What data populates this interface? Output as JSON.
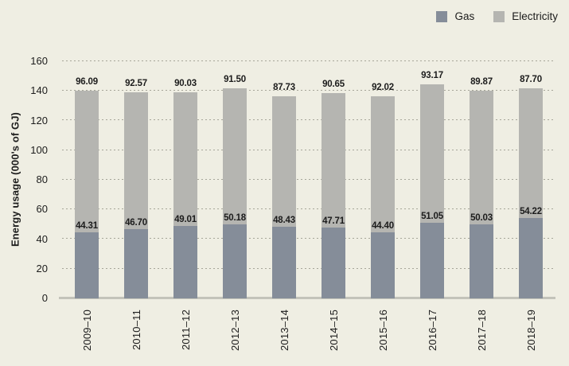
{
  "legend": {
    "items": [
      {
        "label": "Gas",
        "color": "#858d99"
      },
      {
        "label": "Electricity",
        "color": "#b5b5b1"
      }
    ]
  },
  "y_axis": {
    "title": "Energy usage (000's of GJ)",
    "ticks": [
      0,
      20,
      40,
      60,
      80,
      100,
      120,
      140,
      160
    ]
  },
  "chart_data": {
    "type": "bar",
    "stacked": true,
    "title": "",
    "xlabel": "",
    "ylabel": "Energy usage (000's of GJ)",
    "ylim": [
      0,
      160
    ],
    "yticks": [
      0,
      20,
      40,
      60,
      80,
      100,
      120,
      140,
      160
    ],
    "grid": "horizontal-dotted",
    "legend_position": "top-right",
    "value_labels": "on-each-segment",
    "categories": [
      "2009–10",
      "2010–11",
      "2011–12",
      "2012–13",
      "2013–14",
      "2014–15",
      "2015–16",
      "2016–17",
      "2017–18",
      "2018–19"
    ],
    "series": [
      {
        "name": "Gas",
        "color": "#858d99",
        "values": [
          44.31,
          46.7,
          49.01,
          50.18,
          48.43,
          47.71,
          44.4,
          51.05,
          50.03,
          54.22
        ]
      },
      {
        "name": "Electricity",
        "color": "#b5b5b1",
        "values": [
          96.09,
          92.57,
          90.03,
          91.5,
          87.73,
          90.65,
          92.02,
          93.17,
          89.87,
          87.7
        ]
      }
    ]
  },
  "colors": {
    "background": "#efeee3",
    "gridline": "#a6a699",
    "baseline": "#c3c3ba",
    "text": "#1c1c1c"
  }
}
